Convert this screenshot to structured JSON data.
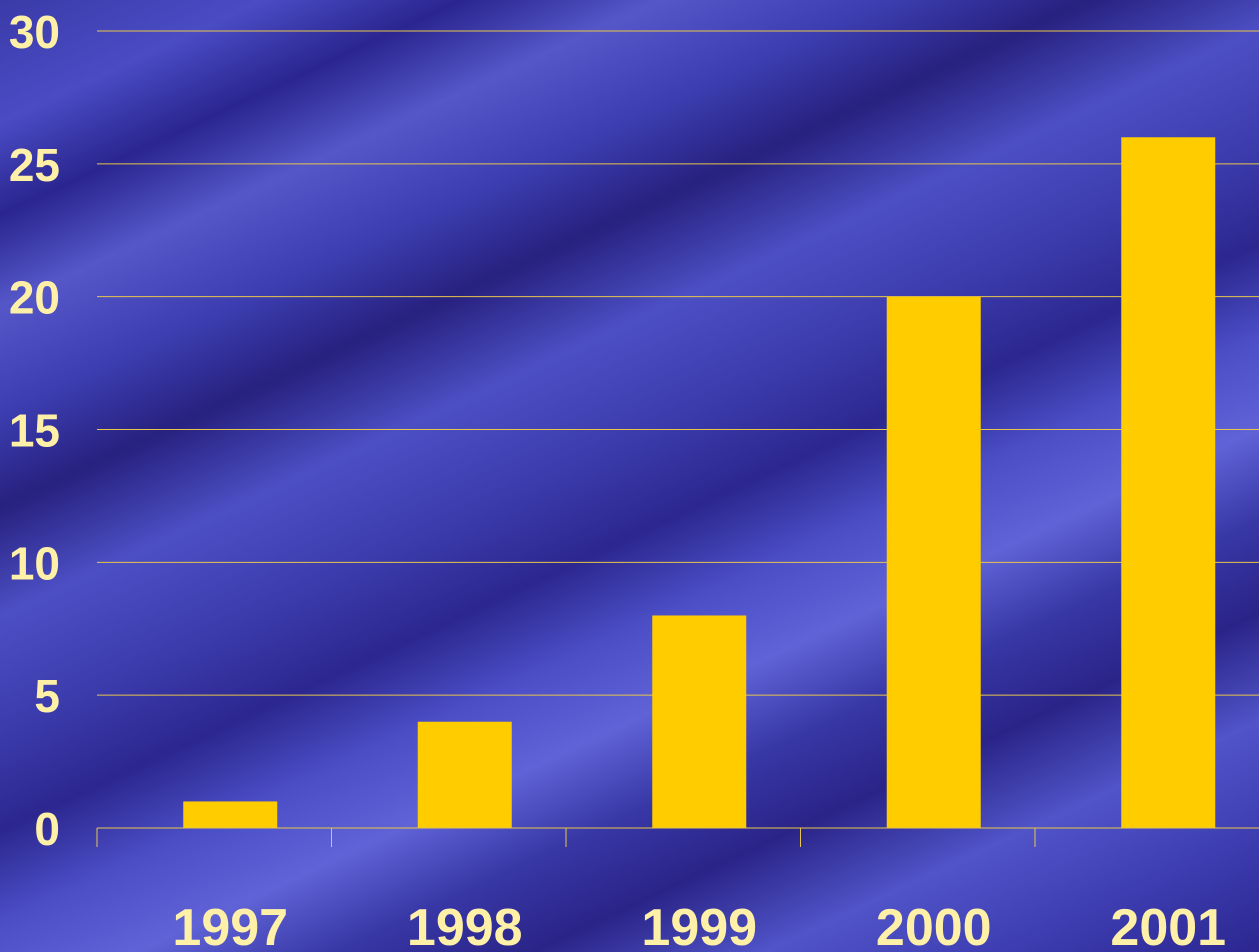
{
  "colors": {
    "bar": "#FFCC00",
    "grid": "#E8C64A",
    "tick_label": "#FFF0A8",
    "background": "#3D3DB0"
  },
  "chart_data": {
    "type": "bar",
    "categories": [
      "1997",
      "1998",
      "1999",
      "2000",
      "2001"
    ],
    "values": [
      1,
      4,
      8,
      20,
      26
    ],
    "ylim": [
      0,
      30
    ],
    "yticks": [
      "0",
      "5",
      "10",
      "15",
      "20",
      "25",
      "30"
    ],
    "grid": true,
    "legend": "none",
    "title": "",
    "xlabel": "",
    "ylabel": ""
  }
}
